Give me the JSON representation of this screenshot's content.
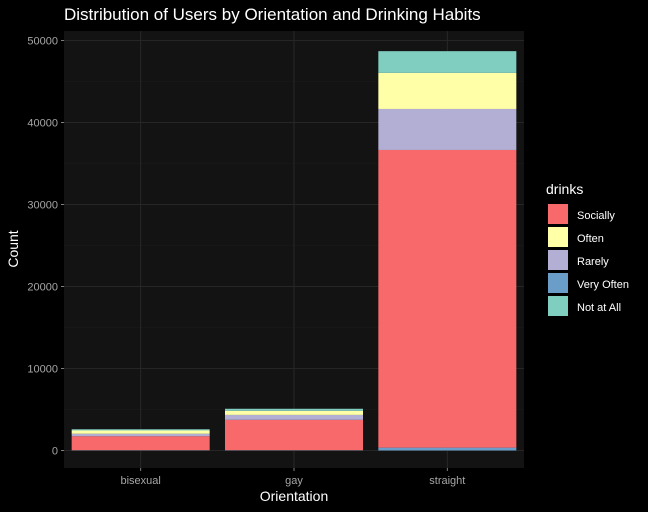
{
  "chart_data": {
    "type": "bar",
    "stacked": true,
    "title": "Distribution of Users by Orientation and Drinking Habits",
    "xlabel": "Orientation",
    "ylabel": "Count",
    "categories": [
      "bisexual",
      "gay",
      "straight"
    ],
    "ylim": [
      0,
      50000
    ],
    "yticks": [
      0,
      10000,
      20000,
      30000,
      40000,
      50000
    ],
    "grid": true,
    "legend_position": "right",
    "legend_title": "drinks",
    "series": [
      {
        "name": "Very Often",
        "color": "#6a9ec8",
        "values": [
          40,
          40,
          350
        ]
      },
      {
        "name": "Socially",
        "color": "#f8696b",
        "values": [
          1700,
          3700,
          36300
        ]
      },
      {
        "name": "Rarely",
        "color": "#b3aed3",
        "values": [
          300,
          600,
          5000
        ]
      },
      {
        "name": "Often",
        "color": "#ffffa8",
        "values": [
          400,
          500,
          4400
        ]
      },
      {
        "name": "Not at All",
        "color": "#80cec0",
        "values": [
          150,
          250,
          2650
        ]
      }
    ],
    "legend_order": [
      "Socially",
      "Often",
      "Rarely",
      "Very Often",
      "Not at All"
    ]
  }
}
